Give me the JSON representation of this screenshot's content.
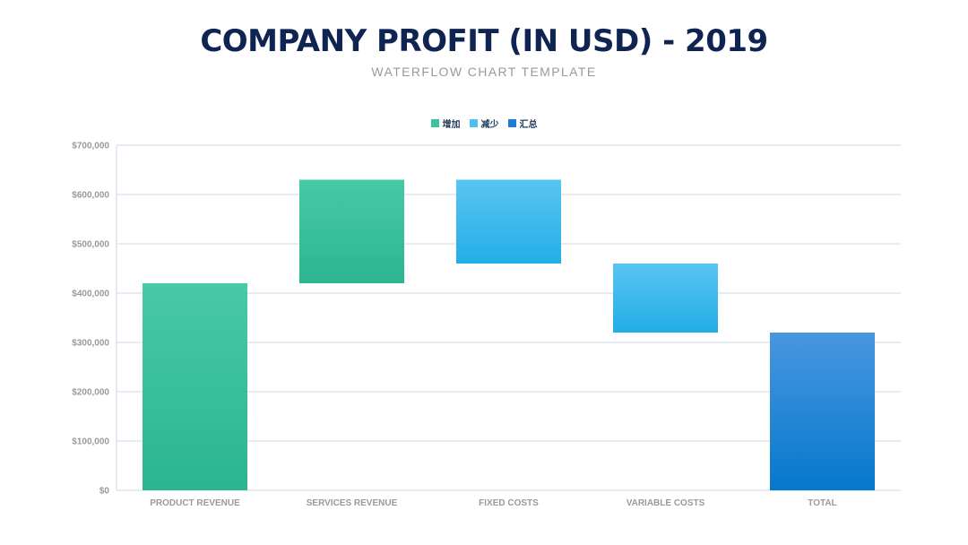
{
  "header": {
    "title": "COMPANY PROFIT (IN USD) - 2019",
    "subtitle": "WATERFLOW CHART TEMPLATE"
  },
  "legend": [
    {
      "label": "增加",
      "color": "#3cc4a0"
    },
    {
      "label": "减少",
      "color": "#4cc0ee"
    },
    {
      "label": "汇总",
      "color": "#1a7fd4"
    }
  ],
  "chart_data": {
    "type": "bar",
    "variant": "waterfall",
    "title": "COMPANY PROFIT (IN USD) - 2019",
    "subtitle": "WATERFLOW CHART TEMPLATE",
    "categories": [
      "PRODUCT REVENUE",
      "SERVICES REVENUE",
      "FIXED COSTS",
      "VARIABLE COSTS",
      "TOTAL"
    ],
    "bars": [
      {
        "category": "PRODUCT REVENUE",
        "kind": "increase",
        "start": 0,
        "end": 420000
      },
      {
        "category": "SERVICES REVENUE",
        "kind": "increase",
        "start": 420000,
        "end": 630000
      },
      {
        "category": "FIXED COSTS",
        "kind": "decrease",
        "start": 630000,
        "end": 460000
      },
      {
        "category": "VARIABLE COSTS",
        "kind": "decrease",
        "start": 460000,
        "end": 320000
      },
      {
        "category": "TOTAL",
        "kind": "total",
        "start": 0,
        "end": 320000
      }
    ],
    "ylim": [
      0,
      700000
    ],
    "yticks": [
      0,
      100000,
      200000,
      300000,
      400000,
      500000,
      600000,
      700000
    ],
    "ytick_labels": [
      "$0",
      "$100,000",
      "$200,000",
      "$300,000",
      "$400,000",
      "$500,000",
      "$600,000",
      "$700,000"
    ],
    "legend_position": "top-center",
    "grid": true,
    "colors": {
      "increase": [
        "#48c9a8",
        "#2bb591"
      ],
      "decrease": [
        "#5ac5f2",
        "#22aee6"
      ],
      "total": [
        "#4a96e0",
        "#0678cc"
      ]
    }
  }
}
